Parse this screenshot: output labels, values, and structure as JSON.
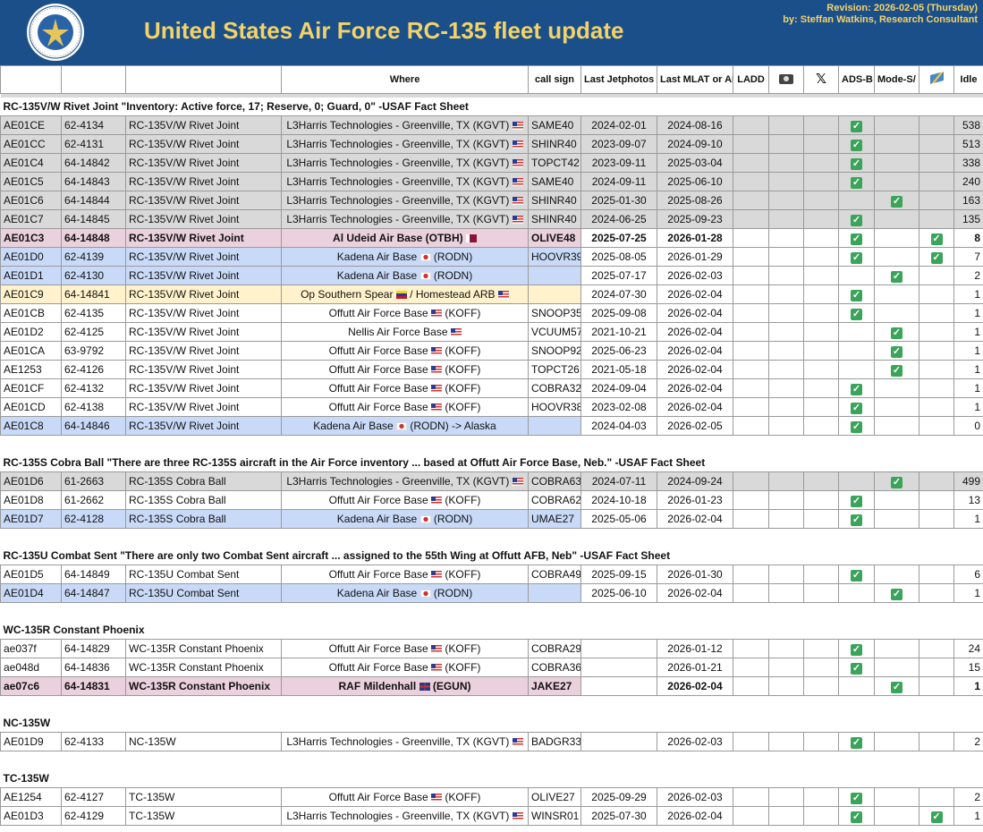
{
  "header": {
    "title": "United States Air Force RC-135 fleet update",
    "revision_line1": "Revision: 2026-02-05 (Thursday)",
    "revision_line2": "by: Steffan Watkins, Research Consultant",
    "logo_icon": "usaf-seal-icon"
  },
  "columns": {
    "where": "Where",
    "callsign": "call sign",
    "last_jetphotos": "Last Jetphotos",
    "last_mlat": "Last MLAT or ADS-B",
    "ladd": "LADD",
    "camera_icon": "camera-icon",
    "x_icon": "x-icon",
    "adsb": "ADS-B",
    "modes_mlat": "Mode-S/ MLAT",
    "satellite_icon": "satellite-icon",
    "idle": "Idle"
  },
  "check_glyph": "✓",
  "sections": [
    {
      "title": "RC-135V/W Rivet Joint \"Inventory: Active force, 17; Reserve, 0; Guard, 0\" -USAF Fact Sheet",
      "rows": [
        {
          "style": "gray",
          "hex": "AE01CE",
          "serial": "62-4134",
          "type": "RC-135V/W Rivet Joint",
          "where": "L3Harris Technologies - Greenville, TX (KGVT)",
          "flag": "us",
          "flag_pos": "end",
          "callsign": "SAME40",
          "jet": "2024-02-01",
          "mlat": "2024-08-16",
          "adsb": true,
          "modes": false,
          "sat": false,
          "idle": "538"
        },
        {
          "style": "gray",
          "hex": "AE01CC",
          "serial": "62-4131",
          "type": "RC-135V/W Rivet Joint",
          "where": "L3Harris Technologies - Greenville, TX (KGVT)",
          "flag": "us",
          "flag_pos": "end",
          "callsign": "SHINR40",
          "jet": "2023-09-07",
          "mlat": "2024-09-10",
          "adsb": true,
          "modes": false,
          "sat": false,
          "idle": "513"
        },
        {
          "style": "gray",
          "hex": "AE01C4",
          "serial": "64-14842",
          "type": "RC-135V/W Rivet Joint",
          "where": "L3Harris Technologies - Greenville, TX (KGVT)",
          "flag": "us",
          "flag_pos": "end",
          "callsign": "TOPCT42",
          "jet": "2023-09-11",
          "mlat": "2025-03-04",
          "adsb": true,
          "modes": false,
          "sat": false,
          "idle": "338"
        },
        {
          "style": "gray",
          "hex": "AE01C5",
          "serial": "64-14843",
          "type": "RC-135V/W Rivet Joint",
          "where": "L3Harris Technologies - Greenville, TX (KGVT)",
          "flag": "us",
          "flag_pos": "end",
          "callsign": "SAME40",
          "jet": "2024-09-11",
          "mlat": "2025-06-10",
          "adsb": true,
          "modes": false,
          "sat": false,
          "idle": "240"
        },
        {
          "style": "gray",
          "hex": "AE01C6",
          "serial": "64-14844",
          "type": "RC-135V/W Rivet Joint",
          "where": "L3Harris Technologies - Greenville, TX (KGVT)",
          "flag": "us",
          "flag_pos": "end",
          "callsign": "SHINR40",
          "jet": "2025-01-30",
          "mlat": "2025-08-26",
          "adsb": false,
          "modes": true,
          "sat": false,
          "idle": "163"
        },
        {
          "style": "gray",
          "hex": "AE01C7",
          "serial": "64-14845",
          "type": "RC-135V/W Rivet Joint",
          "where": "L3Harris Technologies - Greenville, TX (KGVT)",
          "flag": "us",
          "flag_pos": "end",
          "callsign": "SHINR40",
          "jet": "2024-06-25",
          "mlat": "2025-09-23",
          "adsb": true,
          "modes": false,
          "sat": false,
          "idle": "135"
        },
        {
          "style": "pink bold",
          "hex": "AE01C3",
          "serial": "64-14848",
          "type": "RC-135V/W Rivet Joint",
          "where": "Al Udeid Air Base (OTBH)",
          "flag": "qa",
          "flag_pos": "end",
          "callsign": "OLIVE48",
          "jet": "2025-07-25",
          "mlat": "2026-01-28",
          "adsb": true,
          "modes": false,
          "sat": true,
          "idle": "8"
        },
        {
          "style": "blue",
          "hex": "AE01D0",
          "serial": "62-4139",
          "type": "RC-135V/W Rivet Joint",
          "where": "Kadena Air Base",
          "flag": "jp",
          "flag_pos": "mid",
          "suffix": "(RODN)",
          "callsign": "HOOVR39",
          "jet": "2025-08-05",
          "mlat": "2026-01-29",
          "adsb": true,
          "modes": false,
          "sat": true,
          "idle": "7"
        },
        {
          "style": "blue",
          "hex": "AE01D1",
          "serial": "62-4130",
          "type": "RC-135V/W Rivet Joint",
          "where": "Kadena Air Base",
          "flag": "jp",
          "flag_pos": "mid",
          "suffix": "(RODN)",
          "callsign": "",
          "jet": "2025-07-17",
          "mlat": "2026-02-03",
          "adsb": false,
          "modes": true,
          "sat": false,
          "idle": "2"
        },
        {
          "style": "yellow",
          "hex": "AE01C9",
          "serial": "64-14841",
          "type": "RC-135V/W Rivet Joint",
          "where": "Op Southern Spear",
          "flag": "ve",
          "flag_pos": "mid",
          "suffix": "/ Homestead ARB",
          "flag2": "us",
          "callsign": "",
          "jet": "2024-07-30",
          "mlat": "2026-02-04",
          "adsb": true,
          "modes": false,
          "sat": false,
          "idle": "1"
        },
        {
          "style": "",
          "hex": "AE01CB",
          "serial": "62-4135",
          "type": "RC-135V/W Rivet Joint",
          "where": "Offutt Air Force Base",
          "flag": "us",
          "flag_pos": "mid",
          "suffix": "(KOFF)",
          "callsign": "SNOOP35",
          "jet": "2025-09-08",
          "mlat": "2026-02-04",
          "adsb": true,
          "modes": false,
          "sat": false,
          "idle": "1"
        },
        {
          "style": "",
          "hex": "AE01D2",
          "serial": "62-4125",
          "type": "RC-135V/W Rivet Joint",
          "where": "Nellis Air Force Base",
          "flag": "us",
          "flag_pos": "end",
          "callsign": "VCUUM57",
          "jet": "2021-10-21",
          "mlat": "2026-02-04",
          "adsb": false,
          "modes": true,
          "sat": false,
          "idle": "1"
        },
        {
          "style": "",
          "hex": "AE01CA",
          "serial": "63-9792",
          "type": "RC-135V/W Rivet Joint",
          "where": "Offutt Air Force Base",
          "flag": "us",
          "flag_pos": "mid",
          "suffix": "(KOFF)",
          "callsign": "SNOOP92",
          "jet": "2025-06-23",
          "mlat": "2026-02-04",
          "adsb": false,
          "modes": true,
          "sat": false,
          "idle": "1"
        },
        {
          "style": "",
          "hex": "AE1253",
          "serial": "62-4126",
          "type": "RC-135V/W Rivet Joint",
          "where": "Offutt Air Force Base",
          "flag": "us",
          "flag_pos": "mid",
          "suffix": "(KOFF)",
          "callsign": "TOPCT26",
          "jet": "2021-05-18",
          "mlat": "2026-02-04",
          "adsb": false,
          "modes": true,
          "sat": false,
          "idle": "1"
        },
        {
          "style": "",
          "hex": "AE01CF",
          "serial": "62-4132",
          "type": "RC-135V/W Rivet Joint",
          "where": "Offutt Air Force Base",
          "flag": "us",
          "flag_pos": "mid",
          "suffix": "(KOFF)",
          "callsign": "COBRA32",
          "jet": "2024-09-04",
          "mlat": "2026-02-04",
          "adsb": true,
          "modes": false,
          "sat": false,
          "idle": "1"
        },
        {
          "style": "",
          "hex": "AE01CD",
          "serial": "62-4138",
          "type": "RC-135V/W Rivet Joint",
          "where": "Offutt Air Force Base",
          "flag": "us",
          "flag_pos": "mid",
          "suffix": "(KOFF)",
          "callsign": "HOOVR38",
          "jet": "2023-02-08",
          "mlat": "2026-02-04",
          "adsb": true,
          "modes": false,
          "sat": false,
          "idle": "1"
        },
        {
          "style": "blue",
          "hex": "AE01C8",
          "serial": "64-14846",
          "type": "RC-135V/W Rivet Joint",
          "where": "Kadena Air Base",
          "flag": "jp",
          "flag_pos": "mid",
          "suffix": "(RODN) -> Alaska",
          "callsign": "",
          "jet": "2024-04-03",
          "mlat": "2026-02-05",
          "adsb": true,
          "modes": false,
          "sat": false,
          "idle": "0"
        }
      ]
    },
    {
      "title": "RC-135S Cobra Ball \"There are three RC-135S aircraft in the Air Force inventory ... based at Offutt Air Force Base, Neb.\" -USAF Fact Sheet",
      "rows": [
        {
          "style": "gray",
          "hex": "AE01D6",
          "serial": "61-2663",
          "type": "RC-135S Cobra Ball",
          "where": "L3Harris Technologies - Greenville, TX (KGVT)",
          "flag": "us",
          "flag_pos": "end",
          "callsign": "COBRA63",
          "jet": "2024-07-11",
          "mlat": "2024-09-24",
          "adsb": false,
          "modes": true,
          "sat": false,
          "idle": "499"
        },
        {
          "style": "",
          "hex": "AE01D8",
          "serial": "61-2662",
          "type": "RC-135S Cobra Ball",
          "where": "Offutt Air Force Base",
          "flag": "us",
          "flag_pos": "mid",
          "suffix": "(KOFF)",
          "callsign": "COBRA62",
          "jet": "2024-10-18",
          "mlat": "2026-01-23",
          "adsb": true,
          "modes": false,
          "sat": false,
          "idle": "13"
        },
        {
          "style": "blue",
          "hex": "AE01D7",
          "serial": "62-4128",
          "type": "RC-135S Cobra Ball",
          "where": "Kadena Air Base",
          "flag": "jp",
          "flag_pos": "mid",
          "suffix": "(RODN)",
          "callsign": "UMAE27",
          "jet": "2025-05-06",
          "mlat": "2026-02-04",
          "adsb": true,
          "modes": false,
          "sat": false,
          "idle": "1"
        }
      ]
    },
    {
      "title": "RC-135U Combat Sent \"There are only two Combat Sent aircraft ... assigned to the 55th Wing at Offutt AFB, Neb\" -USAF Fact Sheet",
      "rows": [
        {
          "style": "",
          "hex": "AE01D5",
          "serial": "64-14849",
          "type": "RC-135U Combat Sent",
          "where": "Offutt Air Force Base",
          "flag": "us",
          "flag_pos": "mid",
          "suffix": "(KOFF)",
          "callsign": "COBRA49",
          "jet": "2025-09-15",
          "mlat": "2026-01-30",
          "adsb": true,
          "modes": false,
          "sat": false,
          "idle": "6"
        },
        {
          "style": "blue",
          "hex": "AE01D4",
          "serial": "64-14847",
          "type": "RC-135U Combat Sent",
          "where": "Kadena Air Base",
          "flag": "jp",
          "flag_pos": "mid",
          "suffix": "(RODN)",
          "callsign": "",
          "jet": "2025-06-10",
          "mlat": "2026-02-04",
          "adsb": false,
          "modes": true,
          "sat": false,
          "idle": "1"
        }
      ]
    },
    {
      "title": "WC-135R Constant Phoenix",
      "rows": [
        {
          "style": "",
          "hex": "ae037f",
          "serial": "64-14829",
          "type": "WC-135R Constant Phoenix",
          "where": "Offutt Air Force Base",
          "flag": "us",
          "flag_pos": "mid",
          "suffix": "(KOFF)",
          "callsign": "COBRA29",
          "jet": "",
          "mlat": "2026-01-12",
          "adsb": true,
          "modes": false,
          "sat": false,
          "idle": "24"
        },
        {
          "style": "",
          "hex": "ae048d",
          "serial": "64-14836",
          "type": "WC-135R Constant Phoenix",
          "where": "Offutt Air Force Base",
          "flag": "us",
          "flag_pos": "mid",
          "suffix": "(KOFF)",
          "callsign": "COBRA36",
          "jet": "",
          "mlat": "2026-01-21",
          "adsb": true,
          "modes": false,
          "sat": false,
          "idle": "15"
        },
        {
          "style": "pink bold",
          "hex": "ae07c6",
          "serial": "64-14831",
          "type": "WC-135R Constant Phoenix",
          "where": "RAF Mildenhall",
          "flag": "uk",
          "flag_pos": "mid",
          "suffix": "(EGUN)",
          "callsign": "JAKE27",
          "jet": "",
          "mlat": "2026-02-04",
          "adsb": false,
          "modes": true,
          "sat": false,
          "idle": "1"
        }
      ]
    },
    {
      "title": "NC-135W",
      "rows": [
        {
          "style": "",
          "hex": "AE01D9",
          "serial": "62-4133",
          "type": "NC-135W",
          "where": "L3Harris Technologies - Greenville, TX (KGVT)",
          "flag": "us",
          "flag_pos": "end",
          "callsign": "BADGR33",
          "jet": "",
          "mlat": "2026-02-03",
          "adsb": true,
          "modes": false,
          "sat": false,
          "idle": "2"
        }
      ]
    },
    {
      "title": "TC-135W",
      "rows": [
        {
          "style": "",
          "hex": "AE1254",
          "serial": "62-4127",
          "type": "TC-135W",
          "where": "Offutt Air Force Base",
          "flag": "us",
          "flag_pos": "mid",
          "suffix": "(KOFF)",
          "callsign": "OLIVE27",
          "jet": "2025-09-29",
          "mlat": "2026-02-03",
          "adsb": true,
          "modes": false,
          "sat": false,
          "idle": "2"
        },
        {
          "style": "",
          "hex": "AE01D3",
          "serial": "62-4129",
          "type": "TC-135W",
          "where": "L3Harris Technologies - Greenville, TX (KGVT)",
          "flag": "us",
          "flag_pos": "end",
          "callsign": "WINSR01",
          "jet": "2025-07-30",
          "mlat": "2026-02-04",
          "adsb": true,
          "modes": false,
          "sat": true,
          "idle": "1"
        }
      ]
    }
  ]
}
